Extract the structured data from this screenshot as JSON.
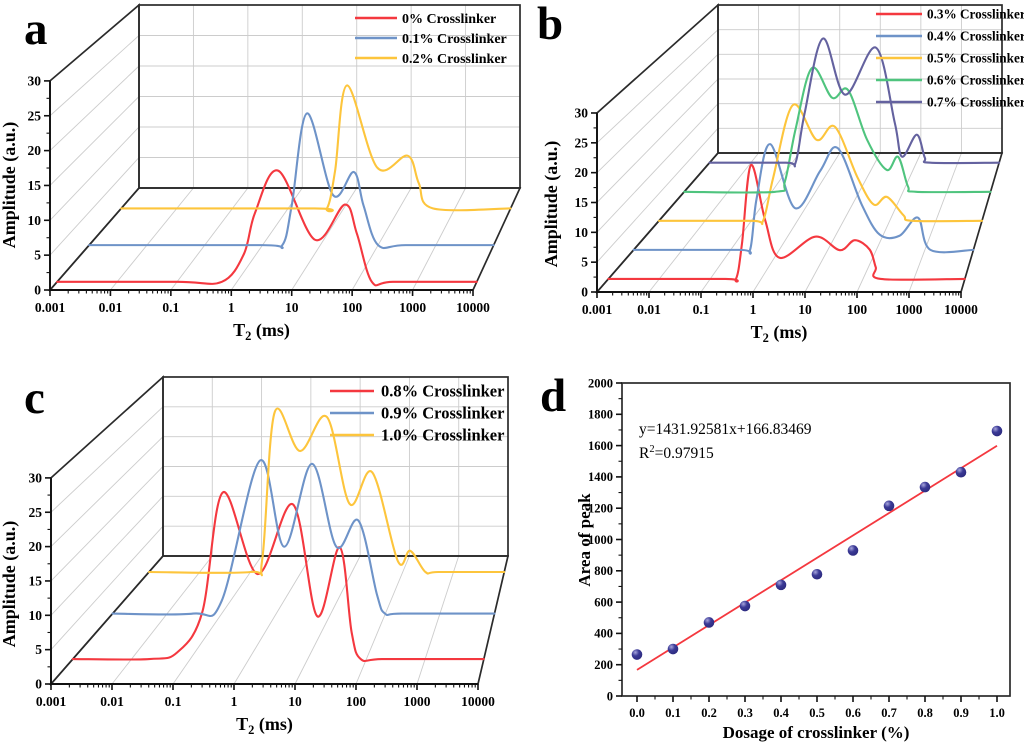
{
  "figure": {
    "panel_letters": {
      "a": "a",
      "b": "b",
      "c": "c",
      "d": "d"
    }
  },
  "chart_data": [
    {
      "panel": "a",
      "type": "line",
      "projection": "3d-waterfall",
      "xlabel": {
        "pre": "T",
        "sub": "2",
        "post": " (ms)"
      },
      "ylabel": "Amplitude (a.u.)",
      "x_scale": "log",
      "x_range_ms": [
        0.001,
        10000
      ],
      "amp_range": [
        0,
        30
      ],
      "x_ticks": [
        "0.001",
        "0.01",
        "0.1",
        "1",
        "10",
        "100",
        "1000",
        "10000"
      ],
      "y_ticks": [
        0,
        5,
        10,
        15,
        20,
        25,
        30
      ],
      "grid": true,
      "legend_position": "top-right",
      "series": [
        {
          "name": "0% Crosslinker",
          "color": "#f4383f",
          "points": [
            [
              0.001,
              0
            ],
            [
              0.1,
              0
            ],
            [
              0.56,
              0
            ],
            [
              1.3,
              4
            ],
            [
              2,
              10
            ],
            [
              4.9,
              16.1
            ],
            [
              20,
              6.1
            ],
            [
              63,
              11.2
            ],
            [
              100,
              7
            ],
            [
              178,
              0
            ],
            [
              400,
              0
            ],
            [
              10000,
              0
            ]
          ]
        },
        {
          "name": "0.1% Crosslinker",
          "color": "#6e93c8",
          "points": [
            [
              0.001,
              0
            ],
            [
              1,
              0
            ],
            [
              2.2,
              0
            ],
            [
              3.2,
              6
            ],
            [
              5.9,
              20
            ],
            [
              16.6,
              7.6
            ],
            [
              38,
              11.1
            ],
            [
              56,
              6
            ],
            [
              100,
              0
            ],
            [
              300,
              0
            ],
            [
              10000,
              0
            ]
          ]
        },
        {
          "name": "0.2% Crosslinker",
          "color": "#fdc53c",
          "points": [
            [
              0.001,
              0
            ],
            [
              3,
              0
            ],
            [
              5,
              0
            ],
            [
              7,
              6
            ],
            [
              11.5,
              19.6
            ],
            [
              40,
              6.5
            ],
            [
              141,
              8.4
            ],
            [
              224,
              4
            ],
            [
              400,
              0
            ],
            [
              10000,
              0
            ]
          ]
        }
      ]
    },
    {
      "panel": "b",
      "type": "line",
      "projection": "3d-waterfall",
      "xlabel": {
        "pre": "T",
        "sub": "2",
        "post": " (ms)"
      },
      "ylabel": "Amplitude (a.u.)",
      "x_scale": "log",
      "x_range_ms": [
        0.001,
        10000
      ],
      "amp_range": [
        0,
        30
      ],
      "x_ticks": [
        "0.001",
        "0.01",
        "0.1",
        "1",
        "10",
        "100",
        "1000",
        "10000"
      ],
      "y_ticks": [
        0,
        5,
        10,
        15,
        20,
        25,
        30
      ],
      "grid": true,
      "legend_position": "top-right",
      "series": [
        {
          "name": "0.3% Crosslinker",
          "color": "#f4383f",
          "points": [
            [
              0.001,
              0
            ],
            [
              0.2,
              0
            ],
            [
              0.32,
              0
            ],
            [
              0.42,
              6
            ],
            [
              0.63,
              19.4
            ],
            [
              1.2,
              10
            ],
            [
              2.3,
              3.6
            ],
            [
              11.5,
              7.2
            ],
            [
              35,
              4.9
            ],
            [
              69,
              6.6
            ],
            [
              135,
              5
            ],
            [
              178,
              2
            ],
            [
              224,
              0
            ],
            [
              10000,
              0
            ]
          ]
        },
        {
          "name": "0.4% Crosslinker",
          "color": "#6e93c8",
          "points": [
            [
              0.001,
              0
            ],
            [
              0.15,
              0
            ],
            [
              0.25,
              0
            ],
            [
              0.34,
              9
            ],
            [
              0.65,
              18.7
            ],
            [
              2.1,
              7.4
            ],
            [
              7,
              14
            ],
            [
              16,
              18
            ],
            [
              50,
              8
            ],
            [
              117,
              2.7
            ],
            [
              300,
              2.5
            ],
            [
              720,
              5.7
            ],
            [
              1300,
              0
            ],
            [
              10000,
              0
            ]
          ]
        },
        {
          "name": "0.5% Crosslinker",
          "color": "#fdc53c",
          "points": [
            [
              0.001,
              0
            ],
            [
              0.1,
              0
            ],
            [
              0.18,
              0
            ],
            [
              0.3,
              8
            ],
            [
              0.8,
              21.3
            ],
            [
              2.6,
              14.9
            ],
            [
              6.5,
              17.3
            ],
            [
              20,
              8
            ],
            [
              45,
              3
            ],
            [
              87,
              4.4
            ],
            [
              200,
              1
            ],
            [
              320,
              0
            ],
            [
              10000,
              0
            ]
          ]
        },
        {
          "name": "0.6% Crosslinker",
          "color": "#4fc47e",
          "points": [
            [
              0.001,
              0
            ],
            [
              0.12,
              0
            ],
            [
              0.2,
              2
            ],
            [
              0.35,
              12
            ],
            [
              0.83,
              23.7
            ],
            [
              2.4,
              18
            ],
            [
              5.5,
              19.5
            ],
            [
              15,
              10
            ],
            [
              42,
              4.2
            ],
            [
              77,
              6.7
            ],
            [
              130,
              1
            ],
            [
              200,
              0
            ],
            [
              10000,
              0
            ]
          ]
        },
        {
          "name": "0.7% Crosslinker",
          "color": "#64629f",
          "points": [
            [
              0.001,
              0
            ],
            [
              0.07,
              0
            ],
            [
              0.12,
              0
            ],
            [
              0.2,
              10
            ],
            [
              0.55,
              24.8
            ],
            [
              1.9,
              13.6
            ],
            [
              10.5,
              23
            ],
            [
              30,
              8
            ],
            [
              45,
              1.2
            ],
            [
              102,
              5.6
            ],
            [
              160,
              1
            ],
            [
              220,
              0
            ],
            [
              10000,
              0
            ]
          ]
        }
      ]
    },
    {
      "panel": "c",
      "type": "line",
      "projection": "3d-waterfall",
      "xlabel": {
        "pre": "T",
        "sub": "2",
        "post": " (ms)"
      },
      "ylabel": "Amplitude (a.u.)",
      "x_scale": "log",
      "x_range_ms": [
        0.001,
        10000
      ],
      "amp_range": [
        0,
        30
      ],
      "x_ticks": [
        "0.001",
        "0.01",
        "0.1",
        "1",
        "10",
        "100",
        "1000",
        "10000"
      ],
      "y_ticks": [
        0,
        5,
        10,
        15,
        20,
        25,
        30
      ],
      "grid": true,
      "legend_position": "top-right",
      "series": [
        {
          "name": "0.8% Crosslinker",
          "color": "#f4383f",
          "points": [
            [
              0.001,
              0
            ],
            [
              0.02,
              0
            ],
            [
              0.06,
              1
            ],
            [
              0.16,
              7
            ],
            [
              0.36,
              24.9
            ],
            [
              1.4,
              12.7
            ],
            [
              5.6,
              23.1
            ],
            [
              14.5,
              6.4
            ],
            [
              35,
              16.7
            ],
            [
              56,
              4
            ],
            [
              80,
              0
            ],
            [
              200,
              0
            ],
            [
              10000,
              0
            ]
          ]
        },
        {
          "name": "0.9% Crosslinker",
          "color": "#6e93c8",
          "points": [
            [
              0.001,
              0
            ],
            [
              0.03,
              0
            ],
            [
              0.1,
              2
            ],
            [
              0.5,
              24
            ],
            [
              1.4,
              10.5
            ],
            [
              4.5,
              23.5
            ],
            [
              12.6,
              10.5
            ],
            [
              32,
              14.6
            ],
            [
              70,
              3
            ],
            [
              98,
              0
            ],
            [
              200,
              0
            ],
            [
              10000,
              0
            ]
          ]
        },
        {
          "name": "1.0% Crosslinker",
          "color": "#fdc53c",
          "points": [
            [
              0.001,
              0
            ],
            [
              0.1,
              0
            ],
            [
              0.17,
              2
            ],
            [
              0.3,
              26.3
            ],
            [
              0.94,
              19.9
            ],
            [
              3.2,
              25.5
            ],
            [
              9,
              11.2
            ],
            [
              25,
              16.4
            ],
            [
              80,
              1.8
            ],
            [
              140,
              3.5
            ],
            [
              280,
              0
            ],
            [
              500,
              0
            ],
            [
              10000,
              0
            ]
          ]
        }
      ]
    },
    {
      "panel": "d",
      "type": "scatter",
      "xlabel": "Dosage of crosslinker (%)",
      "ylabel": "Area of peak",
      "x_ticks": [
        "0.0",
        "0.1",
        "0.2",
        "0.3",
        "0.4",
        "0.5",
        "0.6",
        "0.7",
        "0.8",
        "0.9",
        "1.0"
      ],
      "y_ticks": [
        0,
        200,
        400,
        600,
        800,
        1000,
        1200,
        1400,
        1600,
        1800,
        2000
      ],
      "x_range": [
        0.0,
        1.0
      ],
      "y_range": [
        0,
        2000
      ],
      "grid": false,
      "points": [
        [
          0.0,
          265
        ],
        [
          0.1,
          300
        ],
        [
          0.2,
          470
        ],
        [
          0.3,
          575
        ],
        [
          0.4,
          710
        ],
        [
          0.5,
          778
        ],
        [
          0.6,
          930
        ],
        [
          0.7,
          1215
        ],
        [
          0.8,
          1335
        ],
        [
          0.9,
          1430
        ],
        [
          1.0,
          1693
        ]
      ],
      "fit": {
        "slope": 1431.92581,
        "intercept": 166.83469,
        "x_start": 0.0,
        "x_end": 1.0,
        "color": "#f4383f"
      },
      "annotation": {
        "equation": "y=1431.92581x+166.83469",
        "r2_base": "R",
        "r2_sup": "2",
        "r2_rest": "=0.97915"
      },
      "point_color": {
        "fill": "#3b3a96",
        "highlight": "#a7a5dd",
        "dark": "#2c2a7e"
      }
    }
  ]
}
